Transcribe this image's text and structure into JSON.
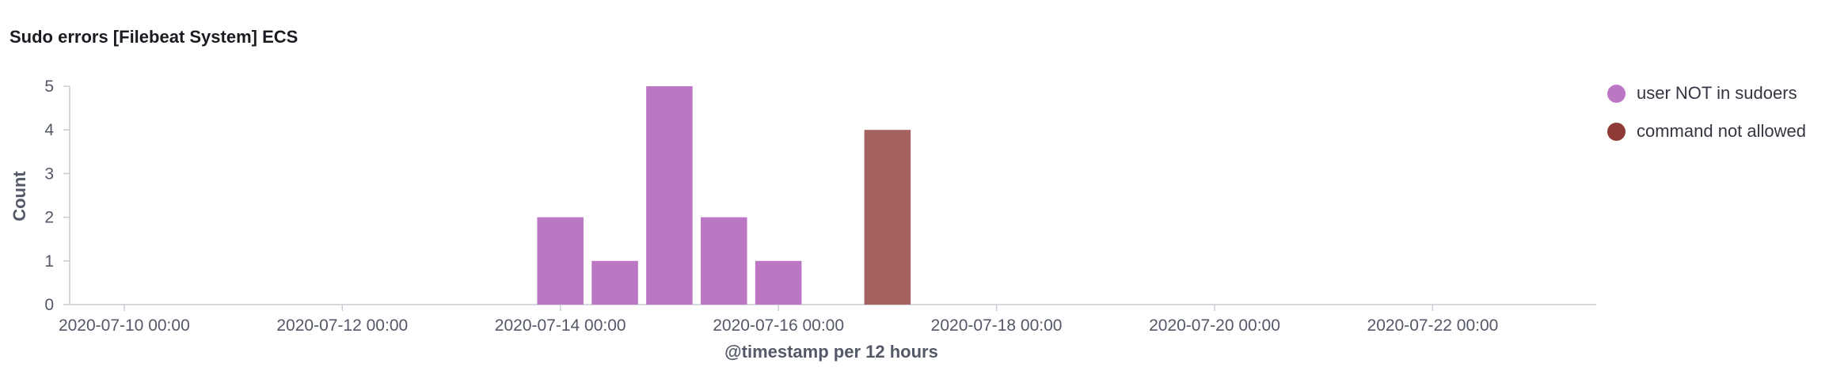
{
  "panel": {
    "title": "Sudo errors [Filebeat System] ECS"
  },
  "legend": [
    {
      "label": "user NOT in sudoers",
      "color": "#bc77c4"
    },
    {
      "label": "command not allowed",
      "color": "#8e3a37"
    }
  ],
  "chart_data": {
    "type": "bar",
    "title": "Sudo errors [Filebeat System] ECS",
    "xlabel": "@timestamp per 12 hours",
    "ylabel": "Count",
    "ylim": [
      0,
      5
    ],
    "yticks": [
      0,
      1,
      2,
      3,
      4,
      5
    ],
    "xlim": [
      "2020-07-09 12:00",
      "2020-07-23 12:00"
    ],
    "xticks": [
      "2020-07-10 00:00",
      "2020-07-12 00:00",
      "2020-07-14 00:00",
      "2020-07-16 00:00",
      "2020-07-18 00:00",
      "2020-07-20 00:00",
      "2020-07-22 00:00"
    ],
    "interval": "12 hours",
    "grid": false,
    "legend_position": "right",
    "series": [
      {
        "name": "user NOT in sudoers",
        "color": "#bc77c4",
        "points": [
          {
            "x": "2020-07-14 00:00",
            "y": 2
          },
          {
            "x": "2020-07-14 12:00",
            "y": 1
          },
          {
            "x": "2020-07-15 00:00",
            "y": 5
          },
          {
            "x": "2020-07-15 12:00",
            "y": 2
          },
          {
            "x": "2020-07-16 00:00",
            "y": 1
          }
        ]
      },
      {
        "name": "command not allowed",
        "color": "#a6625e",
        "points": [
          {
            "x": "2020-07-17 00:00",
            "y": 4
          }
        ]
      }
    ]
  }
}
